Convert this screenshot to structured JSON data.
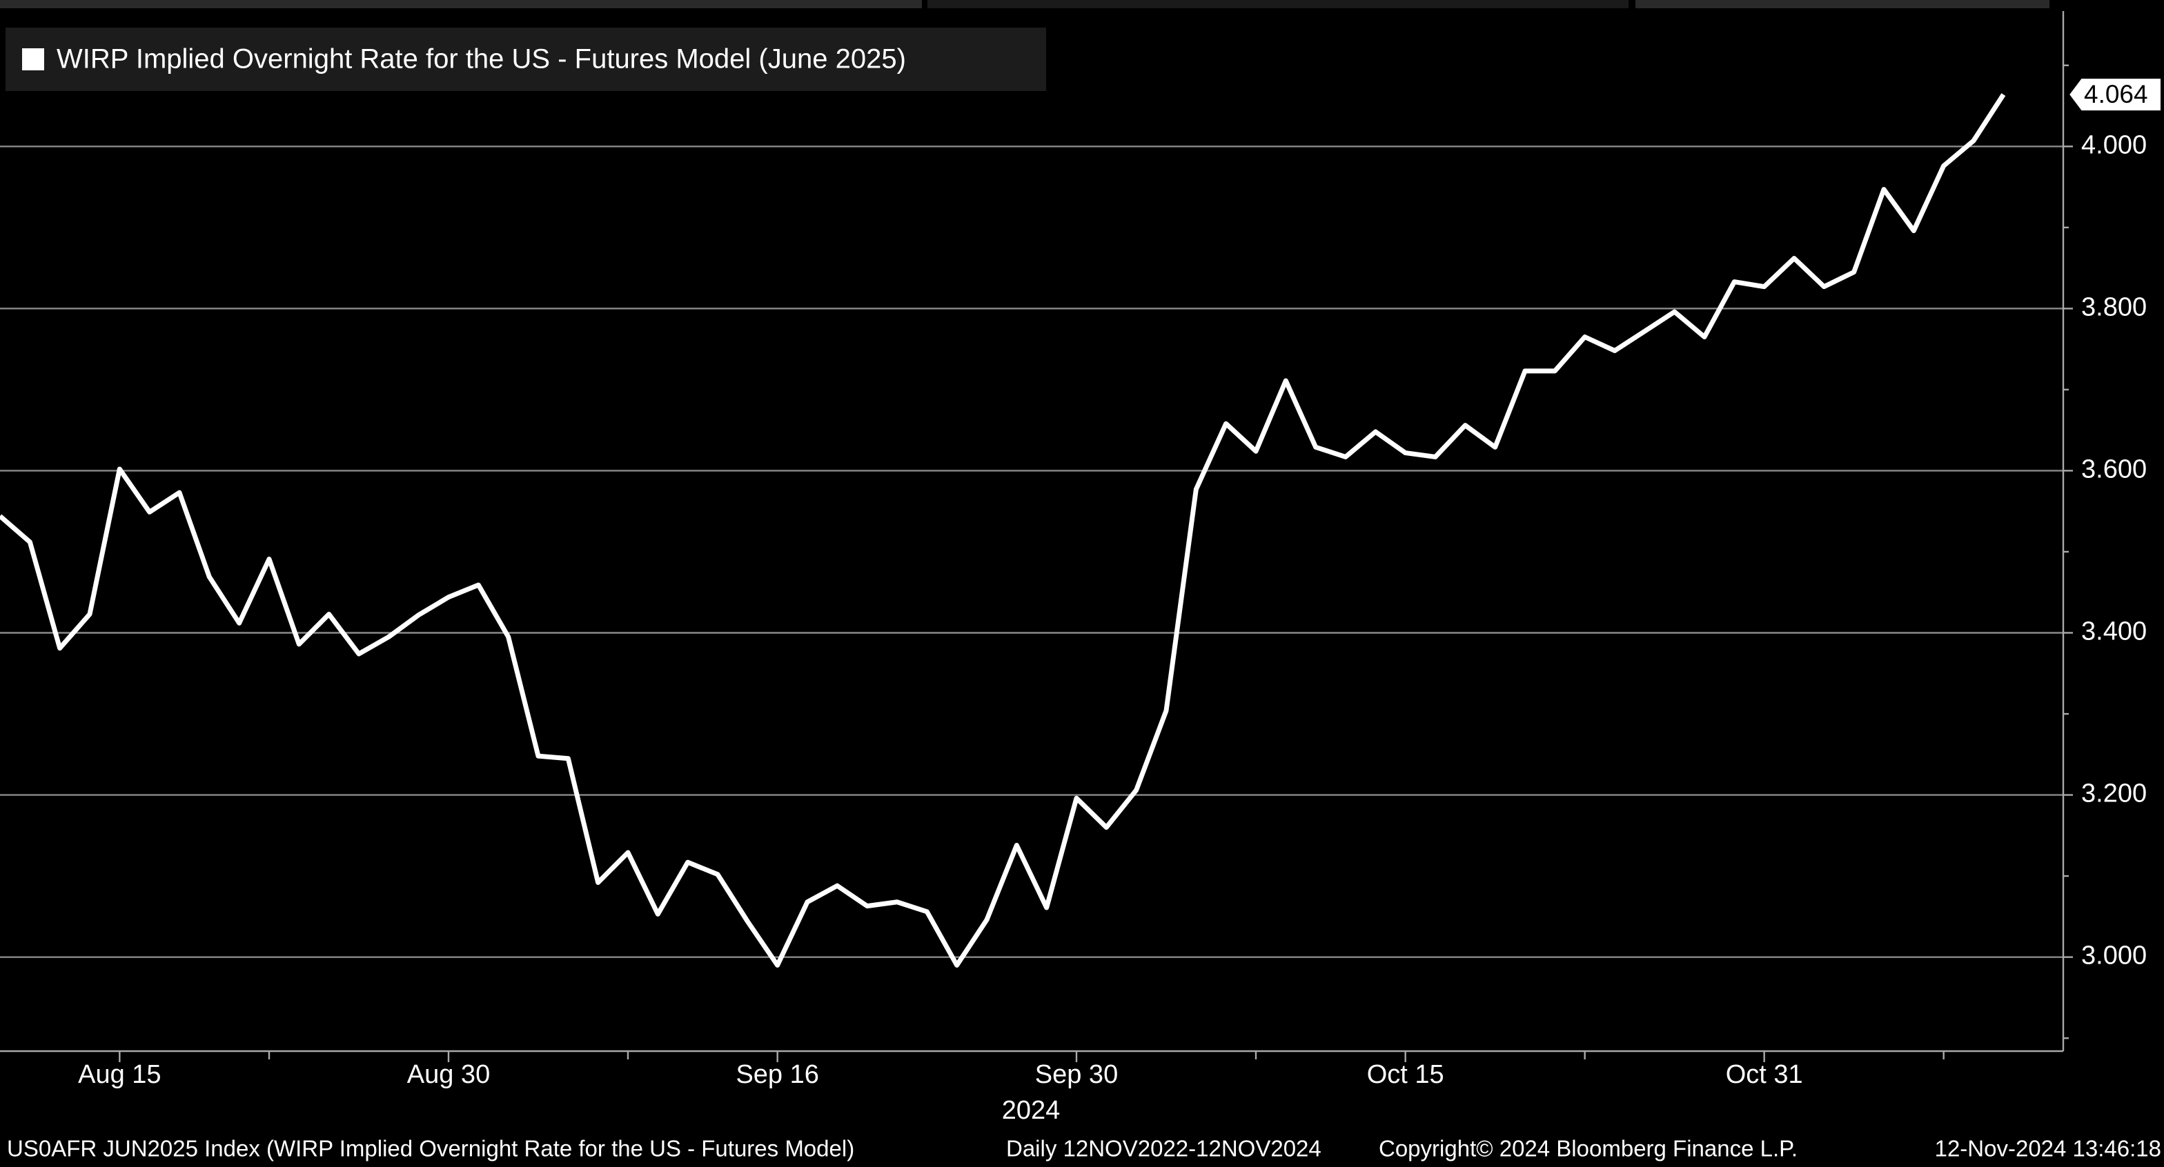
{
  "chart_data": {
    "type": "line",
    "x": [
      "2024-08-09",
      "2024-08-12",
      "2024-08-13",
      "2024-08-14",
      "2024-08-15",
      "2024-08-16",
      "2024-08-19",
      "2024-08-20",
      "2024-08-21",
      "2024-08-22",
      "2024-08-23",
      "2024-08-26",
      "2024-08-27",
      "2024-08-28",
      "2024-08-29",
      "2024-08-30",
      "2024-09-02",
      "2024-09-03",
      "2024-09-04",
      "2024-09-05",
      "2024-09-06",
      "2024-09-09",
      "2024-09-10",
      "2024-09-11",
      "2024-09-12",
      "2024-09-13",
      "2024-09-16",
      "2024-09-17",
      "2024-09-18",
      "2024-09-19",
      "2024-09-20",
      "2024-09-23",
      "2024-09-24",
      "2024-09-25",
      "2024-09-26",
      "2024-09-27",
      "2024-09-30",
      "2024-10-01",
      "2024-10-02",
      "2024-10-03",
      "2024-10-04",
      "2024-10-07",
      "2024-10-08",
      "2024-10-09",
      "2024-10-10",
      "2024-10-11",
      "2024-10-14",
      "2024-10-15",
      "2024-10-16",
      "2024-10-17",
      "2024-10-18",
      "2024-10-21",
      "2024-10-22",
      "2024-10-23",
      "2024-10-24",
      "2024-10-25",
      "2024-10-28",
      "2024-10-29",
      "2024-10-30",
      "2024-10-31",
      "2024-11-01",
      "2024-11-04",
      "2024-11-05",
      "2024-11-06",
      "2024-11-07",
      "2024-11-08",
      "2024-11-11",
      "2024-11-12"
    ],
    "series": [
      {
        "name": "WIRP Implied Overnight Rate for the US - Futures Model (June 2025)",
        "color": "#ffffff",
        "values": [
          3.544,
          3.512,
          3.381,
          3.423,
          3.602,
          3.549,
          3.573,
          3.469,
          3.412,
          3.491,
          3.386,
          3.423,
          3.374,
          3.395,
          3.422,
          3.444,
          3.459,
          3.395,
          3.248,
          3.245,
          3.092,
          3.129,
          3.053,
          3.117,
          3.102,
          3.044,
          2.99,
          3.068,
          3.088,
          3.063,
          3.068,
          3.056,
          2.99,
          3.046,
          3.138,
          3.061,
          3.196,
          3.16,
          3.206,
          3.304,
          3.577,
          3.658,
          3.624,
          3.711,
          3.629,
          3.617,
          3.648,
          3.622,
          3.617,
          3.656,
          3.629,
          3.723,
          3.723,
          3.765,
          3.748,
          3.772,
          3.796,
          3.765,
          3.833,
          3.827,
          3.862,
          3.827,
          3.845,
          3.947,
          3.896,
          3.976,
          4.007,
          4.064
        ],
        "value_labels": [
          null,
          null,
          null,
          null,
          null,
          null,
          null,
          null,
          null,
          null,
          null,
          null,
          null,
          null,
          null,
          null,
          null,
          null,
          null,
          null,
          null,
          null,
          null,
          null,
          null,
          null,
          null,
          null,
          null,
          null,
          null,
          null,
          null,
          null,
          null,
          null,
          null,
          null,
          null,
          null,
          null,
          null,
          null,
          null,
          null,
          null,
          null,
          null,
          null,
          null,
          null,
          null,
          null,
          null,
          null,
          null,
          null,
          null,
          null,
          null,
          null,
          null,
          null,
          null,
          null,
          null,
          null,
          "4.064"
        ]
      }
    ],
    "xlim": [
      "2024-08-09",
      "2024-11-14"
    ],
    "xticks": [
      {
        "value": "2024-08-15",
        "label": "Aug 15"
      },
      {
        "value": "2024-08-30",
        "label": "Aug 30"
      },
      {
        "value": "2024-09-16",
        "label": "Sep 16"
      },
      {
        "value": "2024-09-30",
        "label": "Sep 30"
      },
      {
        "value": "2024-10-15",
        "label": "Oct 15"
      },
      {
        "value": "2024-10-31",
        "label": "Oct 31"
      }
    ],
    "xminorticks": [
      "2024-08-22",
      "2024-09-09",
      "2024-10-08",
      "2024-10-23",
      "2024-11-08"
    ],
    "x_year_label": "2024",
    "ylim": [
      2.884,
      4.167
    ],
    "yticks": [
      {
        "value": 3,
        "label": "3.000"
      },
      {
        "value": 3.2,
        "label": "3.200"
      },
      {
        "value": 3.4,
        "label": "3.400"
      },
      {
        "value": 3.6,
        "label": "3.600"
      },
      {
        "value": 3.8,
        "label": "3.800"
      },
      {
        "value": 4,
        "label": "4.000"
      }
    ],
    "yminorticks": [
      2.9,
      3.1,
      3.3,
      3.5,
      3.7,
      3.9,
      4.1
    ],
    "grid": true,
    "legend": "top-left",
    "footer": {
      "source": "US0AFR JUN2025 Index (WIRP Implied Overnight Rate for the US - Futures Model)",
      "period": "Daily 12NOV2022-12NOV2024",
      "copyright": "Copyright© 2024 Bloomberg Finance L.P.",
      "timestamp": "12-Nov-2024 13:46:18"
    }
  }
}
